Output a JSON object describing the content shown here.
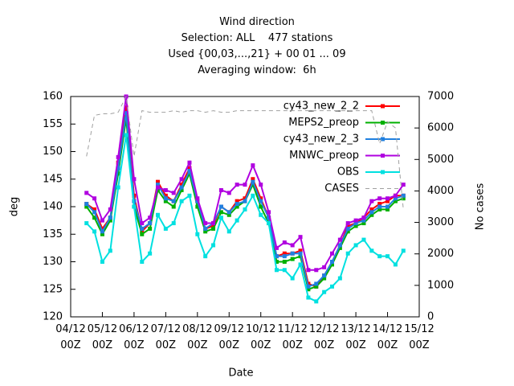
{
  "chart_data": {
    "type": "line",
    "title": "Wind direction\nSelection: ALL    477 stations\nUsed {00,03,...,21} + 00 01 ... 09\nAveraging window:  6h",
    "xlabel": "Date",
    "ylabel": "deg",
    "y2label": "No cases",
    "x": [
      0.5,
      0.75,
      1,
      1.25,
      1.5,
      1.75,
      2,
      2.25,
      2.5,
      2.75,
      3,
      3.25,
      3.5,
      3.75,
      4,
      4.25,
      4.5,
      4.75,
      5,
      5.25,
      5.5,
      5.75,
      6,
      6.25,
      6.5,
      6.75,
      7,
      7.25,
      7.5,
      7.75,
      8,
      8.25,
      8.5,
      8.75,
      9,
      9.25,
      9.5,
      9.75,
      10,
      10.25,
      10.5
    ],
    "xlim": [
      0,
      11
    ],
    "xticks": [
      {
        "value": 0,
        "label": "04/12\n00Z"
      },
      {
        "value": 1,
        "label": "05/12\n00Z"
      },
      {
        "value": 2,
        "label": "06/12\n00Z"
      },
      {
        "value": 3,
        "label": "07/12\n00Z"
      },
      {
        "value": 4,
        "label": "08/12\n00Z"
      },
      {
        "value": 5,
        "label": "09/12\n00Z"
      },
      {
        "value": 6,
        "label": "10/12\n00Z"
      },
      {
        "value": 7,
        "label": "11/12\n00Z"
      },
      {
        "value": 8,
        "label": "12/12\n00Z"
      },
      {
        "value": 9,
        "label": "13/12\n00Z"
      },
      {
        "value": 10,
        "label": "14/12\n00Z"
      },
      {
        "value": 11,
        "label": "15/12\n00Z"
      }
    ],
    "ylim": [
      120,
      160
    ],
    "yticks": [
      120,
      125,
      130,
      135,
      140,
      145,
      150,
      155,
      160
    ],
    "y2lim": [
      0,
      7000
    ],
    "y2ticks": [
      0,
      1000,
      2000,
      3000,
      4000,
      5000,
      6000,
      7000
    ],
    "legend": "upper right",
    "series": [
      {
        "name": "cy43_new_2_2",
        "color": "#ff0000",
        "values": [
          140.5,
          139.5,
          136,
          138,
          148,
          158,
          142,
          135.5,
          137,
          144.5,
          142,
          141,
          144,
          147,
          141,
          136,
          136.5,
          140,
          139,
          141,
          141.5,
          145,
          141.5,
          138,
          131,
          131.5,
          131.5,
          132,
          126,
          125.5,
          127.5,
          130,
          133,
          136.5,
          137,
          138,
          139.5,
          140.5,
          141,
          142,
          142
        ]
      },
      {
        "name": "MEPS2_preop",
        "color": "#00b000",
        "values": [
          140,
          138,
          135,
          137.5,
          146,
          156,
          140,
          135,
          136,
          143,
          141,
          140,
          143,
          146,
          140,
          135.5,
          136,
          139,
          138.5,
          140,
          141,
          144,
          140,
          137,
          130,
          130,
          130.5,
          131,
          125,
          125.5,
          127,
          129.5,
          132.5,
          135.5,
          136.5,
          137,
          138.5,
          139.5,
          139.5,
          141,
          141.5
        ]
      },
      {
        "name": "cy43_new_2_3",
        "color": "#2080e0",
        "values": [
          140.5,
          139,
          135.5,
          138,
          147,
          157,
          141,
          136,
          137,
          144,
          141.5,
          141,
          143.5,
          146.5,
          141,
          136,
          137,
          140,
          139,
          140.5,
          141,
          144.5,
          141,
          138,
          131,
          131,
          131.5,
          131.5,
          125.5,
          126,
          127.5,
          130,
          133,
          136,
          137,
          137.5,
          139,
          140,
          140,
          141.5,
          142
        ]
      },
      {
        "name": "MNWC_preop",
        "color": "#b000e0",
        "values": [
          142.5,
          141.5,
          137.5,
          139.5,
          149,
          160,
          145,
          137,
          138,
          143.5,
          143,
          142.5,
          145,
          148,
          141.5,
          137,
          137,
          143,
          142.5,
          144,
          144,
          147.5,
          144,
          139,
          132.5,
          133.5,
          133,
          134.5,
          128.5,
          128.5,
          129,
          131.5,
          134,
          137,
          137.5,
          138,
          141,
          141.5,
          141.5,
          142,
          144
        ]
      },
      {
        "name": "OBS",
        "color": "#00e0e0",
        "values": [
          137,
          135.5,
          130,
          132,
          143.5,
          153,
          140,
          130,
          131.5,
          138.5,
          136,
          137,
          141,
          142,
          135,
          131,
          133,
          138,
          135.5,
          137.5,
          139.5,
          142,
          138.5,
          137,
          128.5,
          128.5,
          127,
          129.5,
          123.5,
          122.8,
          124.5,
          125.5,
          127,
          131.5,
          133,
          134,
          132,
          131,
          131,
          129.5,
          132
        ]
      },
      {
        "name": "CASES",
        "color": "#a0a0a0",
        "axis": "y2",
        "values": [
          5100,
          6400,
          6450,
          6450,
          6500,
          7000,
          5100,
          6550,
          6500,
          6500,
          6500,
          6550,
          6500,
          6550,
          6550,
          6500,
          6550,
          6500,
          6500,
          6550,
          6550,
          6550,
          6550,
          6550,
          6550,
          6550,
          6550,
          6550,
          6550,
          6550,
          6550,
          6550,
          6550,
          6550,
          6550,
          6550,
          6550,
          5500,
          6200,
          6000,
          3400
        ]
      }
    ]
  }
}
